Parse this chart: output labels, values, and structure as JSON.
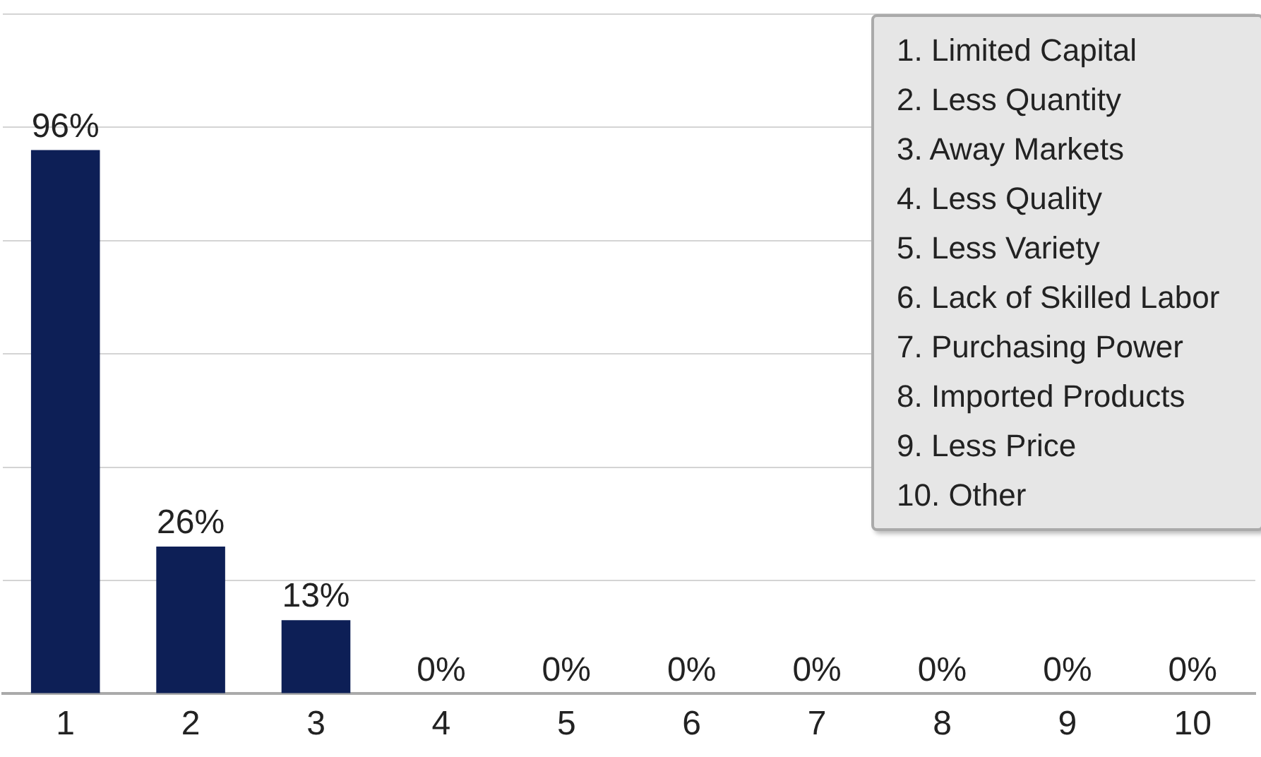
{
  "chart_data": {
    "type": "bar",
    "categories": [
      "1",
      "2",
      "3",
      "4",
      "5",
      "6",
      "7",
      "8",
      "9",
      "10"
    ],
    "values": [
      96,
      26,
      13,
      0,
      0,
      0,
      0,
      0,
      0,
      0
    ],
    "value_labels": [
      "96%",
      "26%",
      "13%",
      "0%",
      "0%",
      "0%",
      "0%",
      "0%",
      "0%",
      "0%"
    ],
    "color": "#0d1f56",
    "ylim": [
      0,
      120
    ],
    "yticks": [
      {
        "value": 0,
        "label": null
      },
      {
        "value": 20,
        "label": null
      },
      {
        "value": 40,
        "label": null
      },
      {
        "value": 60,
        "label": null
      },
      {
        "value": 80,
        "label": null
      },
      {
        "value": 100,
        "label": null
      },
      {
        "value": 120,
        "label": null
      }
    ],
    "grid": "y",
    "annotations": [
      "1. Limited Capital",
      "2. Less Quantity",
      "3. Away Markets",
      "4. Less Quality",
      "5. Less Variety",
      "6. Lack of Skilled Labor",
      "7. Purchasing Power",
      "8. Imported Products",
      "9. Less Price",
      "10. Other"
    ]
  }
}
